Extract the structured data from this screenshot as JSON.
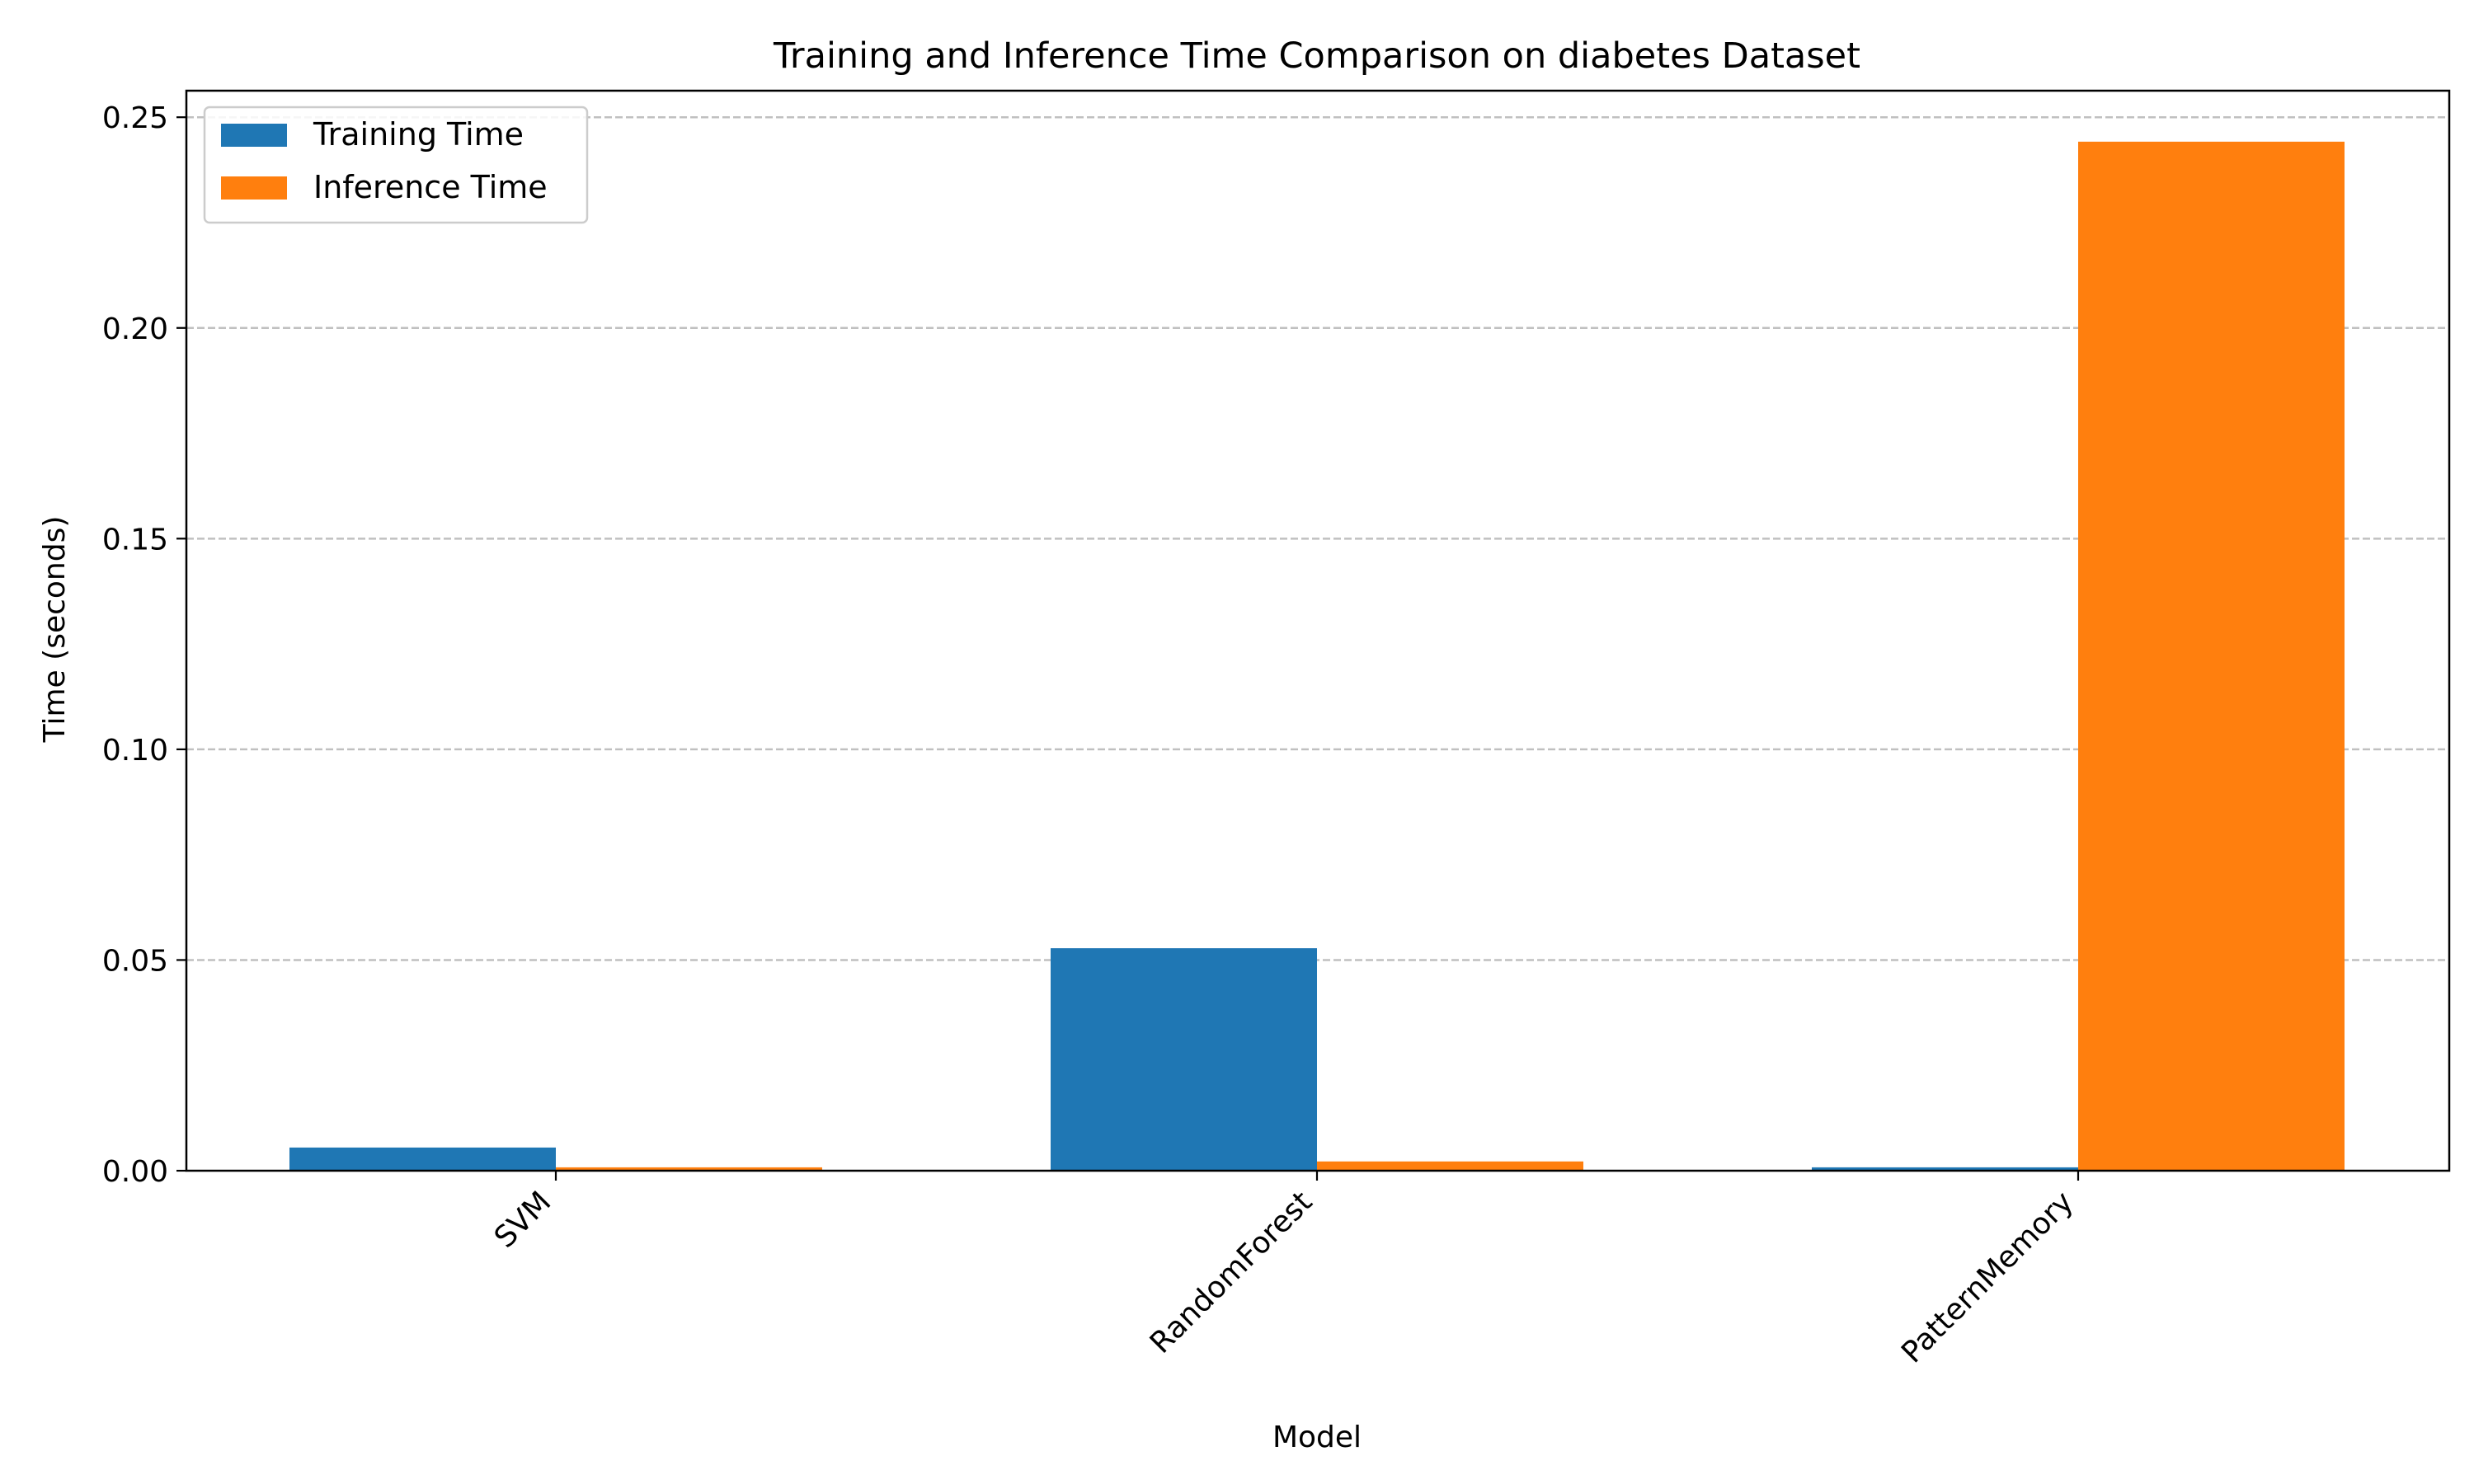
{
  "chart_data": {
    "type": "bar",
    "title": "Training and Inference Time Comparison on diabetes Dataset",
    "xlabel": "Model",
    "ylabel": "Time (seconds)",
    "categories": [
      "SVM",
      "RandomForest",
      "PatternMemory"
    ],
    "series": [
      {
        "name": "Training Time",
        "values": [
          0.0055,
          0.0528,
          0.0008
        ],
        "color": "#1f77b4"
      },
      {
        "name": "Inference Time",
        "values": [
          0.0008,
          0.0022,
          0.2442
        ],
        "color": "#ff7f0e"
      }
    ],
    "ylim": [
      0,
      0.2563
    ],
    "yticks": [
      0.0,
      0.05,
      0.1,
      0.15,
      0.2,
      0.25
    ],
    "ytick_labels": [
      "0.00",
      "0.05",
      "0.10",
      "0.15",
      "0.20",
      "0.25"
    ],
    "grid": "y-dashed",
    "legend_position": "top-left",
    "xtick_rotation": 45
  }
}
